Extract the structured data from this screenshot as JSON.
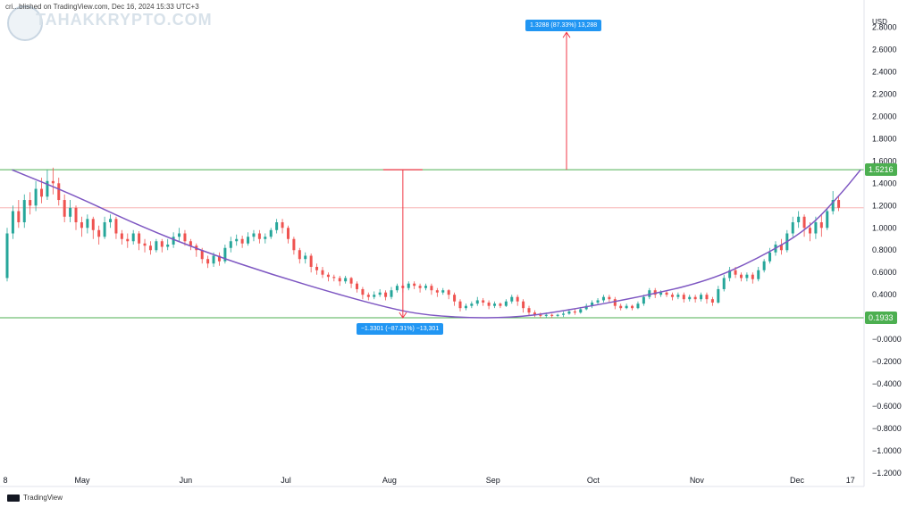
{
  "header": {
    "line_text": "cri...blished on TradingView.com, Dec 16, 2024 15:33 UTC+3",
    "watermark": "TAHAKKRYPTO.COM"
  },
  "footer": {
    "brand": "TradingView",
    "icon": "tradingview-logo-icon"
  },
  "colors": {
    "up": "#26a69a",
    "down": "#ef5350",
    "curve": "#7e57c2",
    "level_line": "#4caf50",
    "measure": "#f23645",
    "measure_box": "#2196f3",
    "price_line": "#f7a8a8"
  },
  "chart_data": {
    "type": "candlestick",
    "currency_label": "USD",
    "ylim": [
      -1.2,
      2.9
    ],
    "y_ticks": [
      "2.8000",
      "2.6000",
      "2.4000",
      "2.2000",
      "2.0000",
      "1.8000",
      "1.6000",
      "1.4000",
      "1.2000",
      "1.0000",
      "0.8000",
      "0.6000",
      "0.4000",
      "0.2000",
      "−0.0000",
      "−0.2000",
      "−0.4000",
      "−0.6000",
      "−0.8000",
      "−1.0000",
      "−1.2000"
    ],
    "y_tick_values": [
      2.8,
      2.6,
      2.4,
      2.2,
      2.0,
      1.8,
      1.6,
      1.4,
      1.2,
      1.0,
      0.8,
      0.6,
      0.4,
      0.2,
      0,
      -0.2,
      -0.4,
      -0.6,
      -0.8,
      -1.0,
      -1.2
    ],
    "x_ticks": [
      "8",
      "May",
      "Jun",
      "Jul",
      "Aug",
      "Sep",
      "Oct",
      "Nov",
      "Dec",
      "17"
    ],
    "x_tick_days": [
      0,
      23,
      54,
      84,
      115,
      146,
      176,
      207,
      237,
      253
    ],
    "price_levels": [
      {
        "value": 1.5216,
        "label": "1.5216"
      },
      {
        "value": 0.1933,
        "label": "0.1933"
      }
    ],
    "current_price": 1.18,
    "measure_down": {
      "label": "−1.3301 (−87.31%) −13,301",
      "day": 119,
      "from": 1.5216,
      "to": 0.1933
    },
    "measure_up": {
      "label": "1.3288 (87.33%) 13,288",
      "day": 168,
      "from": 1.5216,
      "to": 2.85
    },
    "curve_points": [
      [
        2,
        1.52
      ],
      [
        20,
        1.3
      ],
      [
        40,
        1.02
      ],
      [
        60,
        0.78
      ],
      [
        80,
        0.58
      ],
      [
        100,
        0.4
      ],
      [
        115,
        0.28
      ],
      [
        125,
        0.22
      ],
      [
        140,
        0.19
      ],
      [
        155,
        0.2
      ],
      [
        170,
        0.27
      ],
      [
        190,
        0.38
      ],
      [
        210,
        0.52
      ],
      [
        225,
        0.72
      ],
      [
        240,
        0.98
      ],
      [
        250,
        1.3
      ],
      [
        256,
        1.52
      ]
    ],
    "candles": [
      [
        0,
        0.55,
        0.95,
        0.52,
        1.0
      ],
      [
        1,
        0.95,
        1.15,
        0.9,
        1.2
      ],
      [
        2,
        1.15,
        1.05,
        1.0,
        1.25
      ],
      [
        3,
        1.05,
        1.25,
        1.0,
        1.3
      ],
      [
        4,
        1.25,
        1.2,
        1.12,
        1.32
      ],
      [
        5,
        1.2,
        1.35,
        1.15,
        1.42
      ],
      [
        6,
        1.35,
        1.28,
        1.22,
        1.45
      ],
      [
        7,
        1.28,
        1.42,
        1.25,
        1.52
      ],
      [
        8,
        1.42,
        1.4,
        1.3,
        1.54
      ],
      [
        9,
        1.4,
        1.25,
        1.2,
        1.45
      ],
      [
        10,
        1.25,
        1.1,
        1.05,
        1.3
      ],
      [
        11,
        1.1,
        1.18,
        1.05,
        1.25
      ],
      [
        12,
        1.18,
        1.05,
        0.98,
        1.2
      ],
      [
        13,
        1.05,
        1.0,
        0.92,
        1.1
      ],
      [
        14,
        1.0,
        1.08,
        0.95,
        1.12
      ],
      [
        15,
        1.08,
        0.98,
        0.9,
        1.1
      ],
      [
        16,
        0.98,
        0.92,
        0.85,
        1.02
      ],
      [
        17,
        0.92,
        1.05,
        0.9,
        1.1
      ],
      [
        18,
        1.05,
        1.08,
        1.0,
        1.12
      ],
      [
        19,
        1.08,
        0.95,
        0.9,
        1.1
      ],
      [
        20,
        0.95,
        0.9,
        0.85,
        0.98
      ],
      [
        21,
        0.9,
        0.88,
        0.82,
        0.95
      ],
      [
        22,
        0.88,
        0.95,
        0.85,
        0.98
      ],
      [
        23,
        0.95,
        0.86,
        0.8,
        0.97
      ],
      [
        24,
        0.86,
        0.84,
        0.78,
        0.9
      ],
      [
        25,
        0.84,
        0.8,
        0.76,
        0.88
      ],
      [
        26,
        0.8,
        0.88,
        0.78,
        0.9
      ],
      [
        27,
        0.88,
        0.83,
        0.78,
        0.9
      ],
      [
        28,
        0.83,
        0.85,
        0.8,
        0.9
      ],
      [
        29,
        0.85,
        0.92,
        0.82,
        0.96
      ],
      [
        30,
        0.92,
        0.95,
        0.88,
        1.0
      ],
      [
        31,
        0.95,
        0.88,
        0.84,
        0.98
      ],
      [
        32,
        0.88,
        0.84,
        0.8,
        0.9
      ],
      [
        33,
        0.84,
        0.8,
        0.74,
        0.86
      ],
      [
        34,
        0.8,
        0.72,
        0.68,
        0.82
      ],
      [
        35,
        0.72,
        0.68,
        0.64,
        0.75
      ],
      [
        36,
        0.68,
        0.75,
        0.65,
        0.78
      ],
      [
        37,
        0.75,
        0.7,
        0.66,
        0.78
      ],
      [
        38,
        0.7,
        0.82,
        0.68,
        0.85
      ],
      [
        39,
        0.82,
        0.88,
        0.78,
        0.92
      ],
      [
        40,
        0.88,
        0.9,
        0.84,
        0.94
      ],
      [
        41,
        0.9,
        0.86,
        0.82,
        0.93
      ],
      [
        42,
        0.86,
        0.92,
        0.84,
        0.96
      ],
      [
        43,
        0.92,
        0.95,
        0.88,
        0.98
      ],
      [
        44,
        0.95,
        0.9,
        0.86,
        0.98
      ],
      [
        45,
        0.9,
        0.92,
        0.86,
        0.95
      ],
      [
        46,
        0.92,
        0.98,
        0.9,
        1.0
      ],
      [
        47,
        0.98,
        1.05,
        0.95,
        1.08
      ],
      [
        48,
        1.05,
        1.0,
        0.95,
        1.08
      ],
      [
        49,
        1.0,
        0.9,
        0.86,
        1.02
      ],
      [
        50,
        0.9,
        0.8,
        0.76,
        0.92
      ],
      [
        51,
        0.8,
        0.72,
        0.68,
        0.82
      ],
      [
        52,
        0.72,
        0.75,
        0.68,
        0.78
      ],
      [
        53,
        0.75,
        0.65,
        0.6,
        0.77
      ],
      [
        54,
        0.65,
        0.62,
        0.58,
        0.68
      ],
      [
        55,
        0.62,
        0.58,
        0.55,
        0.65
      ],
      [
        56,
        0.58,
        0.56,
        0.52,
        0.6
      ],
      [
        57,
        0.56,
        0.55,
        0.52,
        0.58
      ],
      [
        58,
        0.55,
        0.52,
        0.48,
        0.57
      ],
      [
        59,
        0.52,
        0.55,
        0.5,
        0.57
      ],
      [
        60,
        0.55,
        0.5,
        0.46,
        0.56
      ],
      [
        61,
        0.5,
        0.45,
        0.42,
        0.52
      ],
      [
        62,
        0.45,
        0.4,
        0.36,
        0.47
      ],
      [
        63,
        0.4,
        0.38,
        0.35,
        0.42
      ],
      [
        64,
        0.38,
        0.4,
        0.36,
        0.43
      ],
      [
        65,
        0.4,
        0.42,
        0.38,
        0.45
      ],
      [
        66,
        0.42,
        0.38,
        0.35,
        0.44
      ],
      [
        67,
        0.38,
        0.44,
        0.36,
        0.47
      ],
      [
        68,
        0.44,
        0.48,
        0.42,
        0.5
      ],
      [
        69,
        0.48,
        0.46,
        0.42,
        0.5
      ],
      [
        70,
        0.46,
        0.5,
        0.44,
        0.52
      ],
      [
        71,
        0.5,
        0.48,
        0.45,
        0.52
      ],
      [
        72,
        0.48,
        0.46,
        0.42,
        0.5
      ],
      [
        73,
        0.46,
        0.48,
        0.44,
        0.5
      ],
      [
        74,
        0.48,
        0.44,
        0.4,
        0.5
      ],
      [
        75,
        0.44,
        0.42,
        0.38,
        0.46
      ],
      [
        76,
        0.42,
        0.44,
        0.4,
        0.46
      ],
      [
        77,
        0.44,
        0.4,
        0.36,
        0.45
      ],
      [
        78,
        0.4,
        0.34,
        0.3,
        0.42
      ],
      [
        79,
        0.34,
        0.28,
        0.25,
        0.36
      ],
      [
        80,
        0.28,
        0.3,
        0.26,
        0.32
      ],
      [
        81,
        0.3,
        0.32,
        0.28,
        0.34
      ],
      [
        82,
        0.32,
        0.35,
        0.3,
        0.38
      ],
      [
        83,
        0.35,
        0.33,
        0.3,
        0.37
      ],
      [
        84,
        0.33,
        0.3,
        0.27,
        0.35
      ],
      [
        85,
        0.3,
        0.32,
        0.28,
        0.34
      ],
      [
        86,
        0.32,
        0.3,
        0.28,
        0.33
      ],
      [
        87,
        0.3,
        0.34,
        0.29,
        0.36
      ],
      [
        88,
        0.34,
        0.38,
        0.32,
        0.4
      ],
      [
        89,
        0.38,
        0.34,
        0.3,
        0.4
      ],
      [
        90,
        0.34,
        0.28,
        0.24,
        0.36
      ],
      [
        91,
        0.28,
        0.24,
        0.21,
        0.3
      ],
      [
        92,
        0.24,
        0.22,
        0.2,
        0.26
      ],
      [
        93,
        0.22,
        0.21,
        0.19,
        0.24
      ],
      [
        94,
        0.21,
        0.22,
        0.19,
        0.24
      ],
      [
        95,
        0.22,
        0.21,
        0.19,
        0.23
      ],
      [
        96,
        0.21,
        0.22,
        0.2,
        0.23
      ],
      [
        97,
        0.22,
        0.23,
        0.2,
        0.25
      ],
      [
        98,
        0.23,
        0.25,
        0.22,
        0.27
      ],
      [
        99,
        0.25,
        0.24,
        0.22,
        0.27
      ],
      [
        100,
        0.24,
        0.27,
        0.23,
        0.29
      ],
      [
        101,
        0.27,
        0.3,
        0.26,
        0.32
      ],
      [
        102,
        0.3,
        0.33,
        0.28,
        0.35
      ],
      [
        103,
        0.33,
        0.35,
        0.31,
        0.37
      ],
      [
        104,
        0.35,
        0.38,
        0.33,
        0.4
      ],
      [
        105,
        0.38,
        0.36,
        0.33,
        0.4
      ],
      [
        106,
        0.36,
        0.3,
        0.27,
        0.38
      ],
      [
        107,
        0.3,
        0.28,
        0.26,
        0.32
      ],
      [
        108,
        0.28,
        0.3,
        0.27,
        0.32
      ],
      [
        109,
        0.3,
        0.28,
        0.26,
        0.31
      ],
      [
        110,
        0.28,
        0.32,
        0.27,
        0.34
      ],
      [
        111,
        0.32,
        0.38,
        0.3,
        0.4
      ],
      [
        112,
        0.38,
        0.44,
        0.36,
        0.46
      ],
      [
        113,
        0.44,
        0.4,
        0.37,
        0.46
      ],
      [
        114,
        0.4,
        0.42,
        0.38,
        0.44
      ],
      [
        115,
        0.42,
        0.4,
        0.38,
        0.44
      ],
      [
        116,
        0.4,
        0.38,
        0.35,
        0.42
      ],
      [
        117,
        0.38,
        0.4,
        0.36,
        0.42
      ],
      [
        118,
        0.4,
        0.36,
        0.33,
        0.42
      ],
      [
        119,
        0.36,
        0.38,
        0.34,
        0.4
      ],
      [
        120,
        0.38,
        0.36,
        0.33,
        0.4
      ],
      [
        121,
        0.36,
        0.4,
        0.34,
        0.42
      ],
      [
        122,
        0.4,
        0.36,
        0.32,
        0.42
      ],
      [
        123,
        0.36,
        0.33,
        0.3,
        0.38
      ],
      [
        124,
        0.33,
        0.45,
        0.32,
        0.48
      ],
      [
        125,
        0.45,
        0.55,
        0.43,
        0.58
      ],
      [
        126,
        0.55,
        0.62,
        0.52,
        0.65
      ],
      [
        127,
        0.62,
        0.58,
        0.55,
        0.65
      ],
      [
        128,
        0.58,
        0.55,
        0.52,
        0.6
      ],
      [
        129,
        0.55,
        0.58,
        0.52,
        0.6
      ],
      [
        130,
        0.58,
        0.54,
        0.5,
        0.6
      ],
      [
        131,
        0.54,
        0.62,
        0.52,
        0.65
      ],
      [
        132,
        0.62,
        0.7,
        0.6,
        0.72
      ],
      [
        133,
        0.7,
        0.78,
        0.68,
        0.82
      ],
      [
        134,
        0.78,
        0.85,
        0.75,
        0.88
      ],
      [
        135,
        0.85,
        0.8,
        0.76,
        0.9
      ],
      [
        136,
        0.8,
        0.95,
        0.78,
        0.98
      ],
      [
        137,
        0.95,
        1.05,
        0.92,
        1.1
      ],
      [
        138,
        1.05,
        1.1,
        1.0,
        1.15
      ],
      [
        139,
        1.1,
        1.0,
        0.92,
        1.12
      ],
      [
        140,
        1.0,
        0.95,
        0.88,
        1.05
      ],
      [
        141,
        0.95,
        1.05,
        0.9,
        1.1
      ],
      [
        142,
        1.05,
        1.0,
        0.92,
        1.12
      ],
      [
        143,
        1.0,
        1.15,
        0.98,
        1.18
      ],
      [
        144,
        1.15,
        1.25,
        1.12,
        1.33
      ],
      [
        145,
        1.25,
        1.18,
        1.15,
        1.28
      ]
    ]
  }
}
